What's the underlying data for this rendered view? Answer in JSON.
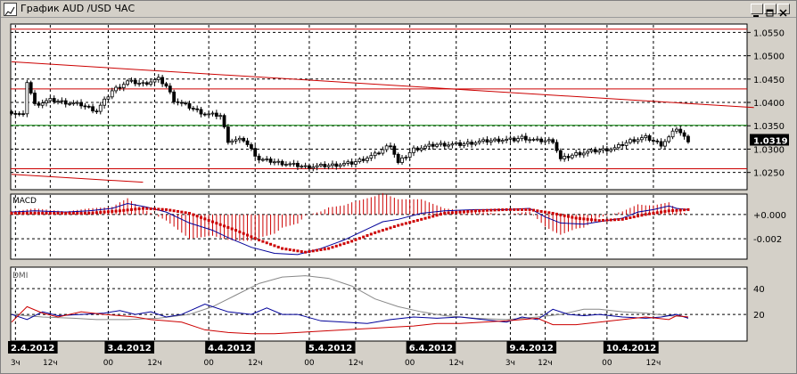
{
  "window": {
    "title": "График AUD /USD  ЧАС"
  },
  "colors": {
    "background": "#ffffff",
    "frame": "#d4d0c8",
    "grid": "#000000",
    "candle": "#000000",
    "trend_line": "#cc0000",
    "support_line": "#008000",
    "macd_line": "#000099",
    "macd_signal": "#cc0000",
    "dmi_adx": "#888888",
    "dmi_plus": "#000099",
    "dmi_minus": "#cc0000",
    "date_label_bg": "#000000"
  },
  "chart_data": [
    {
      "type": "candlestick",
      "title": "",
      "price_axis": {
        "ticks": [
          "1.0550",
          "1.0500",
          "1.0450",
          "1.0400",
          "1.0350",
          "1.0300",
          "1.0250"
        ],
        "tick_values": [
          1.055,
          1.05,
          1.045,
          1.04,
          1.035,
          1.03,
          1.025
        ],
        "range": [
          1.0215,
          1.0566
        ]
      },
      "current_price": "1.0319",
      "current_value": 1.0319,
      "lines": [
        {
          "name": "horizontal",
          "color": "#cc0000",
          "y": 1.0557
        },
        {
          "name": "horizontal",
          "color": "#cc0000",
          "y": 1.0429
        },
        {
          "name": "horizontal",
          "color": "#008000",
          "y": 1.0351
        },
        {
          "name": "horizontal",
          "color": "#cc0000",
          "y": 1.0258
        },
        {
          "name": "trend",
          "color": "#cc0000",
          "from": [
            0,
            1.0487
          ],
          "to": [
            192,
            1.0389
          ]
        },
        {
          "name": "trend",
          "color": "#cc0000",
          "from": [
            0,
            1.0246
          ],
          "to": [
            34,
            1.0229
          ]
        }
      ],
      "close_path": [
        [
          0,
          1.038
        ],
        [
          3,
          1.0372
        ],
        [
          4,
          1.0445
        ],
        [
          6,
          1.0395
        ],
        [
          10,
          1.0405
        ],
        [
          18,
          1.0395
        ],
        [
          22,
          1.0382
        ],
        [
          26,
          1.0425
        ],
        [
          30,
          1.0445
        ],
        [
          34,
          1.044
        ],
        [
          38,
          1.045
        ],
        [
          40,
          1.0435
        ],
        [
          42,
          1.0405
        ],
        [
          46,
          1.039
        ],
        [
          50,
          1.0375
        ],
        [
          54,
          1.0372
        ],
        [
          56,
          1.0318
        ],
        [
          60,
          1.032
        ],
        [
          64,
          1.0278
        ],
        [
          70,
          1.027
        ],
        [
          76,
          1.0262
        ],
        [
          82,
          1.0265
        ],
        [
          88,
          1.027
        ],
        [
          94,
          1.0288
        ],
        [
          98,
          1.031
        ],
        [
          100,
          1.027
        ],
        [
          104,
          1.03
        ],
        [
          110,
          1.031
        ],
        [
          116,
          1.031
        ],
        [
          120,
          1.0315
        ],
        [
          126,
          1.032
        ],
        [
          130,
          1.032
        ],
        [
          132,
          1.0325
        ],
        [
          136,
          1.0318
        ],
        [
          140,
          1.0318
        ],
        [
          142,
          1.0278
        ],
        [
          146,
          1.029
        ],
        [
          150,
          1.0295
        ],
        [
          156,
          1.0302
        ],
        [
          160,
          1.0318
        ],
        [
          164,
          1.0325
        ],
        [
          168,
          1.031
        ],
        [
          170,
          1.0325
        ],
        [
          172,
          1.0345
        ],
        [
          174,
          1.0325
        ],
        [
          175,
          1.0319
        ]
      ]
    },
    {
      "type": "line",
      "title": "MACD",
      "y_ticks": [
        "+0.000",
        "-0.002"
      ],
      "tick_values": [
        0.0,
        -0.002
      ],
      "range": [
        -0.0036,
        0.0016
      ],
      "series": [
        {
          "role": "macd",
          "color": "#000099",
          "points": [
            [
              0,
              0.0002
            ],
            [
              6,
              0.0003
            ],
            [
              14,
              0.0002
            ],
            [
              20,
              0.0003
            ],
            [
              26,
              0.0005
            ],
            [
              30,
              0.0009
            ],
            [
              35,
              0.0006
            ],
            [
              40,
              0.0002
            ],
            [
              46,
              -0.0007
            ],
            [
              52,
              -0.0013
            ],
            [
              56,
              -0.0019
            ],
            [
              62,
              -0.0027
            ],
            [
              68,
              -0.0032
            ],
            [
              74,
              -0.0033
            ],
            [
              80,
              -0.0028
            ],
            [
              86,
              -0.0021
            ],
            [
              92,
              -0.0012
            ],
            [
              96,
              -0.0006
            ],
            [
              100,
              -0.0004
            ],
            [
              106,
              0.0001
            ],
            [
              112,
              0.0003
            ],
            [
              120,
              0.0004
            ],
            [
              128,
              0.0004
            ],
            [
              134,
              0.0005
            ],
            [
              138,
              -0.0002
            ],
            [
              142,
              -0.0007
            ],
            [
              148,
              -0.0008
            ],
            [
              152,
              -0.0006
            ],
            [
              158,
              -0.0003
            ],
            [
              162,
              0.0002
            ],
            [
              166,
              0.0004
            ],
            [
              170,
              0.0007
            ],
            [
              172,
              0.0005
            ],
            [
              175,
              0.0004
            ]
          ]
        },
        {
          "role": "signal",
          "color": "#cc0000",
          "points": [
            [
              0,
              0.0001
            ],
            [
              10,
              0.0001
            ],
            [
              20,
              0.0001
            ],
            [
              28,
              0.0003
            ],
            [
              34,
              0.0005
            ],
            [
              40,
              0.0004
            ],
            [
              46,
              0.0001
            ],
            [
              52,
              -0.0006
            ],
            [
              58,
              -0.0013
            ],
            [
              64,
              -0.0021
            ],
            [
              70,
              -0.0028
            ],
            [
              76,
              -0.0031
            ],
            [
              82,
              -0.0028
            ],
            [
              88,
              -0.0022
            ],
            [
              94,
              -0.0015
            ],
            [
              100,
              -0.0009
            ],
            [
              106,
              -0.0004
            ],
            [
              112,
              0.0001
            ],
            [
              120,
              0.0003
            ],
            [
              128,
              0.0004
            ],
            [
              134,
              0.0004
            ],
            [
              140,
              0.0001
            ],
            [
              146,
              -0.0003
            ],
            [
              152,
              -0.0005
            ],
            [
              158,
              -0.0004
            ],
            [
              164,
              0.0
            ],
            [
              170,
              0.0003
            ],
            [
              175,
              0.0004
            ]
          ]
        }
      ]
    },
    {
      "type": "line",
      "title": "DMI",
      "y_ticks": [
        "40",
        "20"
      ],
      "tick_values": [
        40,
        20
      ],
      "range": [
        0,
        56
      ],
      "series": [
        {
          "role": "adx",
          "color": "#888888",
          "points": [
            [
              0,
              20
            ],
            [
              8,
              18
            ],
            [
              16,
              17
            ],
            [
              22,
              16
            ],
            [
              30,
              16
            ],
            [
              38,
              17
            ],
            [
              46,
              20
            ],
            [
              52,
              26
            ],
            [
              58,
              35
            ],
            [
              64,
              44
            ],
            [
              70,
              49
            ],
            [
              76,
              50
            ],
            [
              82,
              48
            ],
            [
              88,
              42
            ],
            [
              94,
              32
            ],
            [
              100,
              26
            ],
            [
              106,
              22
            ],
            [
              112,
              19
            ],
            [
              120,
              17
            ],
            [
              128,
              16
            ],
            [
              136,
              18
            ],
            [
              142,
              20
            ],
            [
              148,
              24
            ],
            [
              152,
              24
            ],
            [
              158,
              22
            ],
            [
              164,
              21
            ],
            [
              170,
              19
            ],
            [
              175,
              18
            ]
          ]
        },
        {
          "role": "di_plus",
          "color": "#000099",
          "points": [
            [
              0,
              20
            ],
            [
              4,
              16
            ],
            [
              8,
              22
            ],
            [
              12,
              19
            ],
            [
              18,
              20
            ],
            [
              24,
              21
            ],
            [
              28,
              23
            ],
            [
              32,
              20
            ],
            [
              36,
              22
            ],
            [
              40,
              18
            ],
            [
              44,
              20
            ],
            [
              50,
              28
            ],
            [
              56,
              22
            ],
            [
              62,
              20
            ],
            [
              66,
              25
            ],
            [
              70,
              20
            ],
            [
              74,
              20
            ],
            [
              80,
              15
            ],
            [
              86,
              14
            ],
            [
              92,
              13
            ],
            [
              98,
              16
            ],
            [
              104,
              18
            ],
            [
              110,
              17
            ],
            [
              116,
              18
            ],
            [
              122,
              16
            ],
            [
              128,
              14
            ],
            [
              132,
              18
            ],
            [
              136,
              16
            ],
            [
              140,
              24
            ],
            [
              144,
              20
            ],
            [
              148,
              19
            ],
            [
              152,
              20
            ],
            [
              158,
              18
            ],
            [
              164,
              17
            ],
            [
              168,
              18
            ],
            [
              172,
              20
            ],
            [
              175,
              17
            ]
          ]
        },
        {
          "role": "di_minus",
          "color": "#cc0000",
          "points": [
            [
              0,
              14
            ],
            [
              4,
              26
            ],
            [
              8,
              21
            ],
            [
              12,
              18
            ],
            [
              18,
              22
            ],
            [
              24,
              20
            ],
            [
              28,
              19
            ],
            [
              32,
              18
            ],
            [
              36,
              16
            ],
            [
              40,
              15
            ],
            [
              44,
              14
            ],
            [
              50,
              8
            ],
            [
              56,
              6
            ],
            [
              62,
              5
            ],
            [
              68,
              5
            ],
            [
              74,
              6
            ],
            [
              80,
              7
            ],
            [
              86,
              8
            ],
            [
              92,
              9
            ],
            [
              98,
              10
            ],
            [
              104,
              11
            ],
            [
              110,
              13
            ],
            [
              116,
              13
            ],
            [
              122,
              14
            ],
            [
              128,
              15
            ],
            [
              132,
              16
            ],
            [
              136,
              17
            ],
            [
              140,
              12
            ],
            [
              146,
              12
            ],
            [
              152,
              14
            ],
            [
              158,
              16
            ],
            [
              164,
              18
            ],
            [
              170,
              16
            ],
            [
              172,
              19
            ],
            [
              175,
              18
            ]
          ]
        }
      ]
    }
  ],
  "time_axis": {
    "dates": [
      {
        "label": "2.4.2012",
        "index": 0
      },
      {
        "label": "3.4.2012",
        "index": 25
      },
      {
        "label": "4.4.2012",
        "index": 51
      },
      {
        "label": "5.4.2012",
        "index": 77
      },
      {
        "label": "6.4.2012",
        "index": 103
      },
      {
        "label": "9.4.2012",
        "index": 129
      },
      {
        "label": "10.4.2012",
        "index": 154
      }
    ],
    "hours": [
      {
        "label": "3ч",
        "index": 1
      },
      {
        "label": "12ч",
        "index": 10
      },
      {
        "label": "00",
        "index": 25
      },
      {
        "label": "12ч",
        "index": 37
      },
      {
        "label": "00",
        "index": 51
      },
      {
        "label": "12ч",
        "index": 63
      },
      {
        "label": "00",
        "index": 77
      },
      {
        "label": "12ч",
        "index": 89
      },
      {
        "label": "00",
        "index": 103
      },
      {
        "label": "12ч",
        "index": 115
      },
      {
        "label": "3ч",
        "index": 129
      },
      {
        "label": "12ч",
        "index": 138
      },
      {
        "label": "00",
        "index": 154
      },
      {
        "label": "12ч",
        "index": 166
      }
    ]
  }
}
